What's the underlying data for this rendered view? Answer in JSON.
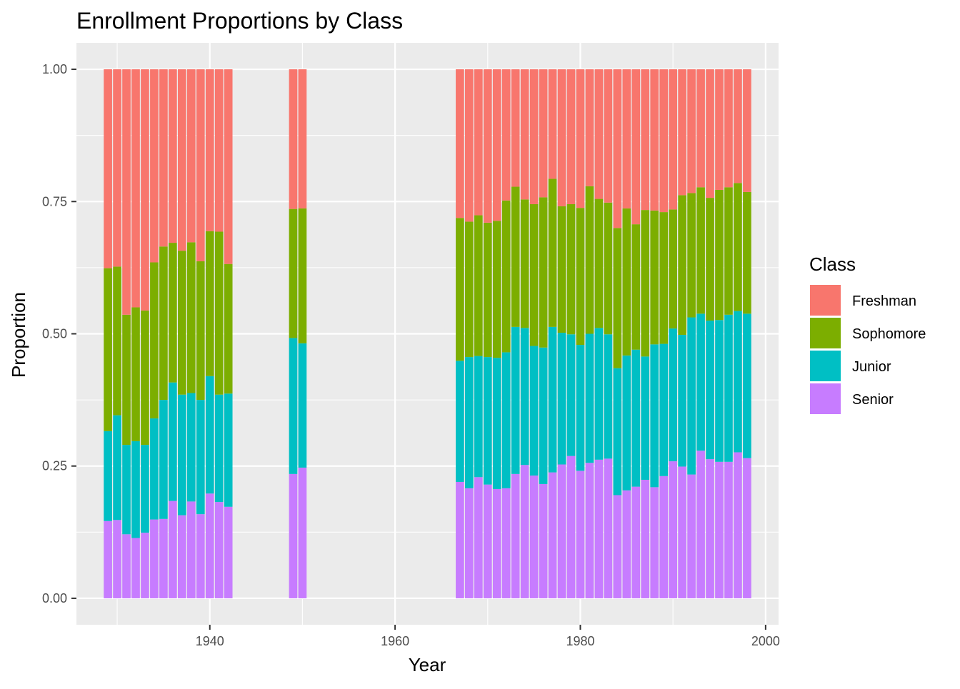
{
  "chart_data": {
    "type": "bar",
    "stacked": true,
    "title": "Enrollment Proportions by Class",
    "xlabel": "Year",
    "ylabel": "Proportion",
    "xlim": [
      1925.6,
      2001.4
    ],
    "ylim": [
      -0.05,
      1.05
    ],
    "x_ticks": [
      1940,
      1960,
      1980,
      2000
    ],
    "y_ticks": [
      0.0,
      0.25,
      0.5,
      0.75,
      1.0
    ],
    "x_tick_labels": [
      "1940",
      "1960",
      "1980",
      "2000"
    ],
    "y_tick_labels": [
      "0.00",
      "0.25",
      "0.50",
      "0.75",
      "1.00"
    ],
    "grid": true,
    "legend": {
      "title": "Class",
      "position": "right",
      "items": [
        "Freshman",
        "Sophomore",
        "Junior",
        "Senior"
      ]
    },
    "stack_order_top_to_bottom": [
      "Freshman",
      "Sophomore",
      "Junior",
      "Senior"
    ],
    "colors": {
      "Freshman": "#F8766D",
      "Sophomore": "#7CAE00",
      "Junior": "#00BFC4",
      "Senior": "#C77CFF",
      "panel": "#EBEBEB",
      "grid": "#FFFFFF"
    },
    "x": [
      1929,
      1930,
      1931,
      1932,
      1933,
      1934,
      1935,
      1936,
      1937,
      1938,
      1939,
      1940,
      1941,
      1942,
      1949,
      1950,
      1967,
      1968,
      1969,
      1970,
      1971,
      1972,
      1973,
      1974,
      1975,
      1976,
      1977,
      1978,
      1979,
      1980,
      1981,
      1982,
      1983,
      1984,
      1985,
      1986,
      1987,
      1988,
      1989,
      1990,
      1991,
      1992,
      1993,
      1994,
      1995,
      1996,
      1997,
      1998
    ],
    "series": [
      {
        "name": "Freshman",
        "values": [
          0.376,
          0.373,
          0.464,
          0.45,
          0.456,
          0.365,
          0.335,
          0.328,
          0.343,
          0.327,
          0.363,
          0.306,
          0.307,
          0.368,
          0.264,
          0.263,
          0.281,
          0.288,
          0.276,
          0.29,
          0.29,
          0.248,
          0.222,
          0.246,
          0.255,
          0.242,
          0.207,
          0.259,
          0.255,
          0.262,
          0.221,
          0.245,
          0.252,
          0.3,
          0.263,
          0.293,
          0.266,
          0.267,
          0.27,
          0.265,
          0.238,
          0.234,
          0.223,
          0.243,
          0.228,
          0.223,
          0.215,
          0.232
        ]
      },
      {
        "name": "Sophomore",
        "values": [
          0.308,
          0.281,
          0.246,
          0.253,
          0.254,
          0.295,
          0.29,
          0.264,
          0.272,
          0.285,
          0.262,
          0.274,
          0.308,
          0.245,
          0.244,
          0.255,
          0.27,
          0.256,
          0.266,
          0.254,
          0.262,
          0.287,
          0.265,
          0.243,
          0.268,
          0.284,
          0.28,
          0.239,
          0.246,
          0.259,
          0.279,
          0.244,
          0.249,
          0.265,
          0.278,
          0.237,
          0.277,
          0.253,
          0.249,
          0.225,
          0.264,
          0.235,
          0.239,
          0.232,
          0.246,
          0.241,
          0.242,
          0.23
        ]
      },
      {
        "name": "Junior",
        "values": [
          0.17,
          0.198,
          0.169,
          0.183,
          0.166,
          0.191,
          0.225,
          0.224,
          0.228,
          0.205,
          0.216,
          0.222,
          0.203,
          0.214,
          0.257,
          0.235,
          0.229,
          0.248,
          0.229,
          0.241,
          0.251,
          0.257,
          0.278,
          0.259,
          0.245,
          0.258,
          0.275,
          0.249,
          0.23,
          0.238,
          0.244,
          0.249,
          0.235,
          0.24,
          0.255,
          0.259,
          0.233,
          0.27,
          0.25,
          0.251,
          0.249,
          0.297,
          0.259,
          0.262,
          0.268,
          0.278,
          0.267,
          0.273
        ]
      },
      {
        "name": "Senior",
        "values": [
          0.146,
          0.148,
          0.121,
          0.114,
          0.124,
          0.149,
          0.15,
          0.184,
          0.157,
          0.183,
          0.159,
          0.198,
          0.182,
          0.173,
          0.235,
          0.247,
          0.22,
          0.208,
          0.229,
          0.215,
          0.209,
          0.208,
          0.235,
          0.252,
          0.232,
          0.216,
          0.238,
          0.253,
          0.269,
          0.241,
          0.256,
          0.262,
          0.264,
          0.195,
          0.204,
          0.211,
          0.224,
          0.21,
          0.231,
          0.259,
          0.249,
          0.234,
          0.279,
          0.263,
          0.258,
          0.258,
          0.276,
          0.265
        ]
      }
    ]
  }
}
